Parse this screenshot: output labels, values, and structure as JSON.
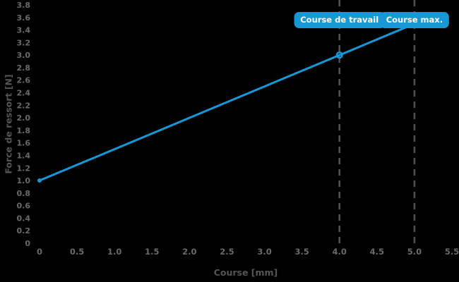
{
  "chart_data": {
    "type": "line",
    "title": "",
    "xlabel": "Course [mm]",
    "ylabel": "Force de ressort [N]",
    "xlim": [
      0,
      5.5
    ],
    "ylim": [
      0,
      3.8
    ],
    "grid": false,
    "legend": false,
    "x_tick_labels": [
      "0",
      "0.5",
      "1.0",
      "1.5",
      "2.0",
      "2.5",
      "3.0",
      "3.5",
      "4.0",
      "4.5",
      "5.0",
      "5.5"
    ],
    "y_tick_labels": [
      "0",
      "0.2",
      "0.4",
      "0.6",
      "0.8",
      "1.0",
      "1.2",
      "1.4",
      "1.6",
      "1.8",
      "2.0",
      "2.2",
      "2.4",
      "2.6",
      "2.8",
      "3.0",
      "3.2",
      "3.4",
      "3.6",
      "3.8"
    ],
    "series": [
      {
        "name": "Force de ressort",
        "points": [
          [
            0,
            1.0
          ],
          [
            5.0,
            3.5
          ]
        ]
      }
    ],
    "markers": [
      {
        "x": 0,
        "y": 1.0,
        "style": "dot"
      },
      {
        "x": 4.0,
        "y": 3.0,
        "style": "open-circle"
      }
    ],
    "vlines": [
      {
        "x": 4.0,
        "label": "Course de travail"
      },
      {
        "x": 5.0,
        "label": "Course max."
      }
    ],
    "colors": {
      "background": "#000000",
      "line": "#1798d5",
      "annotation_background": "#1798d5",
      "annotation_text": "#ffffff",
      "tick_label": "#6a6a6a",
      "axis_title": "#555555",
      "dashed_line": "#4f4f4f"
    }
  }
}
